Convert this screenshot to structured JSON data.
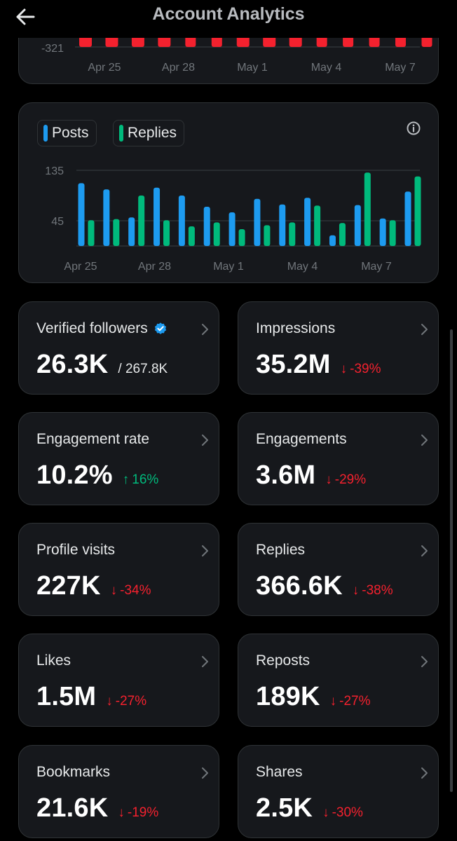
{
  "header": {
    "title": "Account Analytics",
    "back_icon": "arrow-left-icon"
  },
  "colors": {
    "background": "#000000",
    "card": "#16181c",
    "border": "#2f3336",
    "posts": "#1d9bf0",
    "replies": "#00ba7c",
    "negative": "#f4212e",
    "positive": "#00ba7c",
    "verified": "#1d9bf0"
  },
  "top_chart": {
    "y_tick": "-321",
    "x_labels": [
      "Apr 25",
      "Apr 28",
      "May 1",
      "May 4",
      "May 7"
    ]
  },
  "posts_replies_chart": {
    "legend": [
      {
        "name": "Posts",
        "color": "#1d9bf0"
      },
      {
        "name": "Replies",
        "color": "#00ba7c"
      }
    ],
    "info_icon": "info-icon"
  },
  "chart_data": [
    {
      "type": "bar",
      "title": "",
      "x_labels": [
        "Apr 25",
        "Apr 28",
        "May 1",
        "May 4",
        "May 7"
      ],
      "y_ticks": [
        -321
      ],
      "bar_count": 14,
      "color": "#f4212e"
    },
    {
      "type": "bar",
      "title": "",
      "categories": [
        "Apr 25",
        "Apr 26",
        "Apr 27",
        "Apr 28",
        "Apr 29",
        "Apr 30",
        "May 1",
        "May 2",
        "May 3",
        "May 4",
        "May 5",
        "May 6",
        "May 7",
        "May 8"
      ],
      "x_labels": [
        "Apr 25",
        "Apr 28",
        "May 1",
        "May 4",
        "May 7"
      ],
      "y_ticks": [
        45,
        135
      ],
      "ylim": [
        0,
        150
      ],
      "series": [
        {
          "name": "Posts",
          "color": "#1d9bf0",
          "values": [
            112,
            101,
            51,
            104,
            90,
            70,
            60,
            84,
            74,
            86,
            19,
            73,
            49,
            97
          ]
        },
        {
          "name": "Replies",
          "color": "#00ba7c",
          "values": [
            46,
            48,
            90,
            46,
            35,
            42,
            30,
            37,
            42,
            72,
            41,
            131,
            46,
            124
          ]
        }
      ]
    }
  ],
  "stats": [
    {
      "id": "verified-followers",
      "label": "Verified followers",
      "value": "26.3K",
      "sub": "/ 267.8K",
      "change": "",
      "direction": "",
      "verified_icon": "verified-badge-icon"
    },
    {
      "id": "impressions",
      "label": "Impressions",
      "value": "35.2M",
      "sub": "",
      "change": "-39%",
      "direction": "down"
    },
    {
      "id": "engagement-rate",
      "label": "Engagement rate",
      "value": "10.2%",
      "sub": "",
      "change": "16%",
      "direction": "up"
    },
    {
      "id": "engagements",
      "label": "Engagements",
      "value": "3.6M",
      "sub": "",
      "change": "-29%",
      "direction": "down"
    },
    {
      "id": "profile-visits",
      "label": "Profile visits",
      "value": "227K",
      "sub": "",
      "change": "-34%",
      "direction": "down"
    },
    {
      "id": "replies",
      "label": "Replies",
      "value": "366.6K",
      "sub": "",
      "change": "-38%",
      "direction": "down"
    },
    {
      "id": "likes",
      "label": "Likes",
      "value": "1.5M",
      "sub": "",
      "change": "-27%",
      "direction": "down"
    },
    {
      "id": "reposts",
      "label": "Reposts",
      "value": "189K",
      "sub": "",
      "change": "-27%",
      "direction": "down"
    },
    {
      "id": "bookmarks",
      "label": "Bookmarks",
      "value": "21.6K",
      "sub": "",
      "change": "-19%",
      "direction": "down"
    },
    {
      "id": "shares",
      "label": "Shares",
      "value": "2.5K",
      "sub": "",
      "change": "-30%",
      "direction": "down"
    }
  ],
  "icons": {
    "chevron": "chevron-right-icon",
    "arrow_down": "arrow-down-icon",
    "arrow_up": "arrow-up-icon"
  }
}
